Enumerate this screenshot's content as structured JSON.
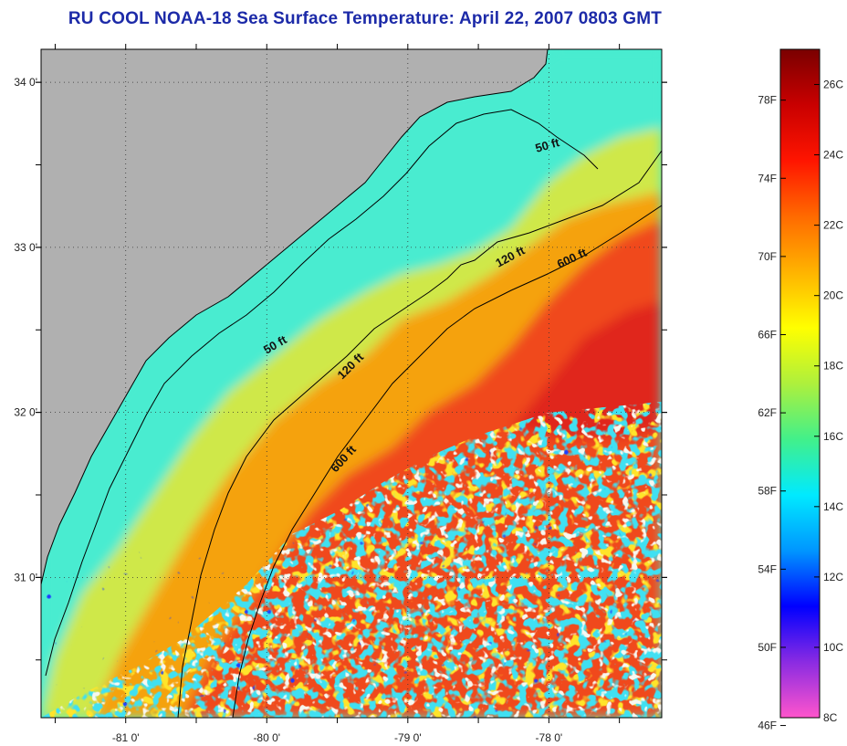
{
  "title": "RU COOL  NOAA-18  Sea Surface Temperature:  April 22, 2007 0803 GMT",
  "map": {
    "lon_range": [
      -81.6,
      -77.2
    ],
    "lat_range": [
      30.15,
      34.2
    ],
    "lat_ticks": [
      {
        "value": 34,
        "label": "34 0'"
      },
      {
        "value": 33,
        "label": "33 0'"
      },
      {
        "value": 32,
        "label": "32 0'"
      },
      {
        "value": 31,
        "label": "31 0'"
      }
    ],
    "lon_ticks": [
      {
        "value": -81,
        "label": "-81 0'"
      },
      {
        "value": -80,
        "label": "-80 0'"
      },
      {
        "value": -79,
        "label": "-79 0'"
      },
      {
        "value": -78,
        "label": "-78 0'"
      }
    ],
    "isobaths": [
      {
        "label": "50 ft"
      },
      {
        "label": "120 ft"
      },
      {
        "label": "600 ft"
      },
      {
        "label": "50 ft"
      },
      {
        "label": "120 ft"
      },
      {
        "label": "600 ft"
      }
    ],
    "colors": {
      "land": "#b0b0b0",
      "cold_shelf": "#49ecd0",
      "mid_shelf": "#cfe84a",
      "outer_shelf": "#f5a20f",
      "gulf_stream": "#f0491a",
      "gulf_core": "#e0261b"
    }
  },
  "colorbar": {
    "fahrenheit_labels": [
      "78F",
      "74F",
      "70F",
      "66F",
      "62F",
      "58F",
      "54F",
      "50F",
      "46F"
    ],
    "celsius_labels": [
      "26C",
      "24C",
      "22C",
      "20C",
      "18C",
      "16C",
      "14C",
      "12C",
      "10C",
      "8C"
    ],
    "celsius_range": [
      8,
      27
    ],
    "gradient": [
      "#ff55cc",
      "#8a2be2",
      "#0000ff",
      "#0096ff",
      "#00eaff",
      "#42f08a",
      "#aef03c",
      "#ffff00",
      "#ffb300",
      "#ff6a00",
      "#ff1500",
      "#c90000",
      "#7a0000"
    ]
  }
}
